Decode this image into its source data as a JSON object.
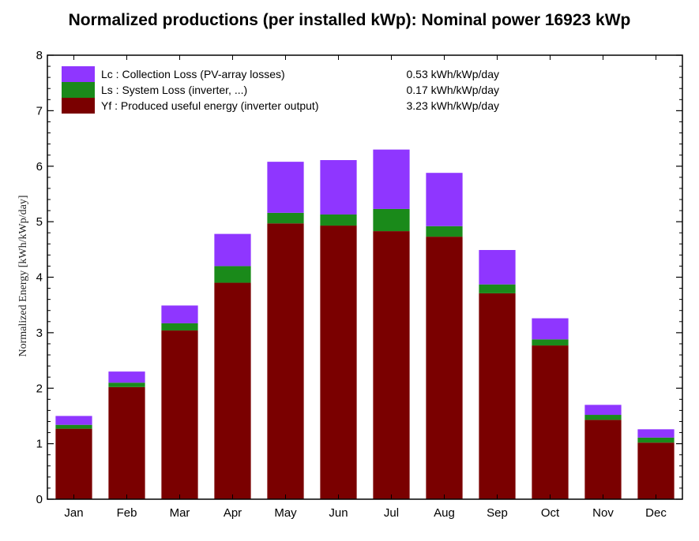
{
  "title": "Normalized productions (per installed kWp):  Nominal power 16923 kWp",
  "colors": {
    "lc": "#8a2be2",
    "lc_fill": "#8f36ff",
    "ls": "#1a8a1a",
    "yf": "#7a0000"
  },
  "legend": [
    {
      "key": "lc",
      "label": "Lc : Collection Loss (PV-array losses)",
      "value": "0.53 kWh/kWp/day"
    },
    {
      "key": "ls",
      "label": "Ls : System Loss  (inverter, ...)",
      "value": "0.17 kWh/kWp/day"
    },
    {
      "key": "yf",
      "label": "Yf : Produced useful energy  (inverter output)",
      "value": "3.23 kWh/kWp/day"
    }
  ],
  "chart_data": {
    "type": "bar",
    "stacked": true,
    "title": "Normalized productions (per installed kWp):  Nominal power 16923 kWp",
    "xlabel": "",
    "ylabel": "Normalized Energy [kWh/kWp/day]",
    "ylim": [
      0,
      8
    ],
    "yticks": [
      0,
      1,
      2,
      3,
      4,
      5,
      6,
      7,
      8
    ],
    "grid": false,
    "legend_position": "top-left",
    "categories": [
      "Jan",
      "Feb",
      "Mar",
      "Apr",
      "May",
      "Jun",
      "Jul",
      "Aug",
      "Sep",
      "Oct",
      "Nov",
      "Dec"
    ],
    "series": [
      {
        "key": "yf",
        "name": "Yf : Produced useful energy  (inverter output)",
        "values": [
          1.27,
          2.02,
          3.04,
          3.9,
          4.97,
          4.93,
          4.83,
          4.73,
          3.71,
          2.77,
          1.43,
          1.02
        ]
      },
      {
        "key": "ls",
        "name": "Ls : System Loss  (inverter, ...)",
        "values": [
          0.07,
          0.08,
          0.13,
          0.3,
          0.19,
          0.2,
          0.4,
          0.19,
          0.16,
          0.11,
          0.09,
          0.09
        ]
      },
      {
        "key": "lc",
        "name": "Lc : Collection Loss (PV-array losses)",
        "values": [
          0.16,
          0.2,
          0.32,
          0.58,
          0.92,
          0.98,
          1.07,
          0.96,
          0.62,
          0.38,
          0.18,
          0.15
        ]
      }
    ]
  }
}
